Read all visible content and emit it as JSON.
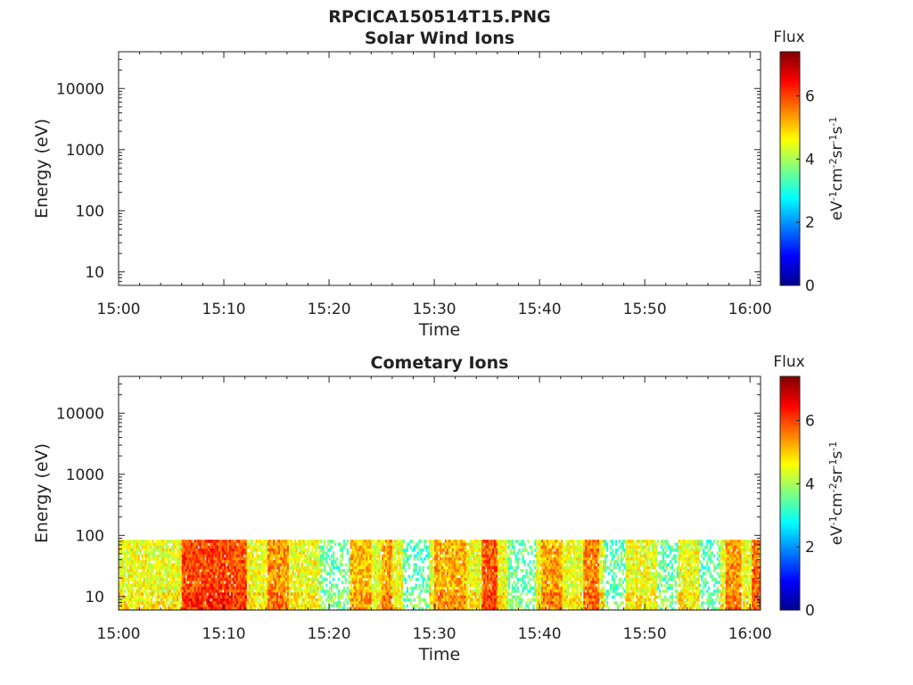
{
  "figure_title": "RPCICA150514T15.PNG",
  "colorbar": {
    "title": "Flux",
    "ticks": [
      "0",
      "2",
      "4",
      "6"
    ],
    "label_parts": [
      {
        "t": "eV",
        "sup": false
      },
      {
        "t": "-1",
        "sup": true
      },
      {
        "t": "cm",
        "sup": false
      },
      {
        "t": "-2",
        "sup": true
      },
      {
        "t": "sr",
        "sup": false
      },
      {
        "t": "-1",
        "sup": true
      },
      {
        "t": "s",
        "sup": false
      },
      {
        "t": "-1",
        "sup": true
      }
    ],
    "colormap": "jet",
    "range": [
      0,
      7.4
    ]
  },
  "chart_data": [
    {
      "type": "heatmap",
      "title": "Solar Wind Ions",
      "xlabel": "Time",
      "ylabel": "Energy (eV)",
      "x_ticks": [
        "15:00",
        "15:10",
        "15:20",
        "15:30",
        "15:40",
        "15:50",
        "16:00"
      ],
      "x_range_minutes": [
        0,
        61
      ],
      "y_ticks": [
        "10",
        "100",
        "1000",
        "10000"
      ],
      "y_scale": "log",
      "ylim": [
        6,
        40000
      ],
      "data_present": false,
      "flux_range": [
        0,
        7.4
      ]
    },
    {
      "type": "heatmap",
      "title": "Cometary Ions",
      "xlabel": "Time",
      "ylabel": "Energy (eV)",
      "x_ticks": [
        "15:00",
        "15:10",
        "15:20",
        "15:30",
        "15:40",
        "15:50",
        "16:00"
      ],
      "x_range_minutes": [
        0,
        61
      ],
      "y_ticks": [
        "10",
        "100",
        "1000",
        "10000"
      ],
      "y_scale": "log",
      "ylim": [
        6,
        40000
      ],
      "data_present": true,
      "energy_range_ev": [
        6,
        85
      ],
      "flux_range": [
        0,
        7.4
      ],
      "flux_typical": 4.5,
      "intense_intervals": [
        {
          "start": 6,
          "end": 12,
          "flux": 5.9
        },
        {
          "start": 14,
          "end": 16,
          "flux": 5.4
        },
        {
          "start": 22,
          "end": 24,
          "flux": 5.1
        },
        {
          "start": 25,
          "end": 26,
          "flux": 5.3
        },
        {
          "start": 30,
          "end": 33,
          "flux": 5.2
        },
        {
          "start": 34.5,
          "end": 36,
          "flux": 5.8
        },
        {
          "start": 40,
          "end": 42,
          "flux": 5.3
        },
        {
          "start": 44,
          "end": 45.5,
          "flux": 5.5
        },
        {
          "start": 57.5,
          "end": 59,
          "flux": 5.4
        },
        {
          "start": 60,
          "end": 61,
          "flux": 5.6
        }
      ],
      "weak_intervals": [
        {
          "start": 19,
          "end": 22,
          "flux": 3.5
        },
        {
          "start": 27,
          "end": 29.5,
          "flux": 3.3
        },
        {
          "start": 37,
          "end": 39.5,
          "flux": 3.5
        },
        {
          "start": 46,
          "end": 48,
          "flux": 3.4
        },
        {
          "start": 51,
          "end": 53,
          "flux": 3.5
        },
        {
          "start": 55,
          "end": 57,
          "flux": 3.4
        }
      ]
    }
  ]
}
